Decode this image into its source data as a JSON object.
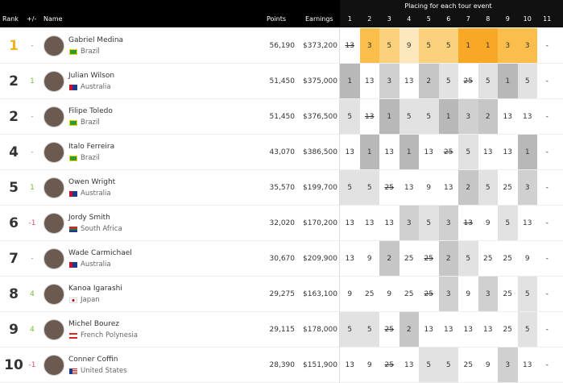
{
  "header": {
    "rank": "Rank",
    "change": "+/-",
    "name": "Name",
    "points": "Points",
    "earnings": "Earnings",
    "placing_title": "Placing for each tour event",
    "events": [
      1,
      2,
      3,
      4,
      5,
      6,
      7,
      8,
      9,
      10,
      11
    ]
  },
  "rows": [
    {
      "rank": 1,
      "change": "-",
      "name": "Gabriel Medina",
      "country": "Brazil",
      "points": "56,190",
      "earnings": "$373,200",
      "placings": [
        13,
        3,
        5,
        9,
        5,
        5,
        1,
        1,
        3,
        3,
        "-"
      ],
      "discarded_event": 1
    },
    {
      "rank": 2,
      "change": 1,
      "name": "Julian Wilson",
      "country": "Australia",
      "points": "51,450",
      "earnings": "$375,000",
      "placings": [
        1,
        13,
        3,
        13,
        2,
        5,
        25,
        5,
        1,
        5,
        "-"
      ],
      "discarded_event": 7
    },
    {
      "rank": 2,
      "change": "-",
      "name": "Filipe Toledo",
      "country": "Brazil",
      "points": "51,450",
      "earnings": "$376,500",
      "placings": [
        5,
        13,
        1,
        5,
        5,
        1,
        3,
        2,
        13,
        13,
        "-"
      ],
      "discarded_event": 2
    },
    {
      "rank": 4,
      "change": "-",
      "name": "Italo Ferreira",
      "country": "Brazil",
      "points": "43,070",
      "earnings": "$386,500",
      "placings": [
        13,
        1,
        13,
        1,
        13,
        25,
        5,
        13,
        13,
        1,
        "-"
      ],
      "discarded_event": 6
    },
    {
      "rank": 5,
      "change": 1,
      "name": "Owen Wright",
      "country": "Australia",
      "points": "35,570",
      "earnings": "$199,700",
      "placings": [
        5,
        5,
        25,
        13,
        9,
        13,
        2,
        5,
        25,
        3,
        "-"
      ],
      "discarded_event": 3
    },
    {
      "rank": 6,
      "change": -1,
      "name": "Jordy Smith",
      "country": "South Africa",
      "points": "32,020",
      "earnings": "$170,200",
      "placings": [
        13,
        13,
        13,
        3,
        5,
        3,
        13,
        9,
        5,
        13,
        "-"
      ],
      "discarded_event": 7
    },
    {
      "rank": 7,
      "change": "-",
      "name": "Wade Carmichael",
      "country": "Australia",
      "points": "30,670",
      "earnings": "$209,900",
      "placings": [
        13,
        9,
        2,
        25,
        25,
        2,
        5,
        25,
        25,
        9,
        "-"
      ],
      "discarded_event": 5
    },
    {
      "rank": 8,
      "change": 4,
      "name": "Kanoa Igarashi",
      "country": "Japan",
      "points": "29,275",
      "earnings": "$163,100",
      "placings": [
        9,
        25,
        9,
        25,
        25,
        3,
        9,
        3,
        25,
        5,
        "-"
      ],
      "discarded_event": 5
    },
    {
      "rank": 9,
      "change": 4,
      "name": "Michel Bourez",
      "country": "French Polynesia",
      "points": "29,115",
      "earnings": "$178,000",
      "placings": [
        5,
        5,
        25,
        2,
        13,
        13,
        13,
        13,
        25,
        5,
        "-"
      ],
      "discarded_event": 3
    },
    {
      "rank": 10,
      "change": -1,
      "name": "Conner Coffin",
      "country": "United States",
      "points": "28,390",
      "earnings": "$151,900",
      "placings": [
        13,
        9,
        25,
        13,
        5,
        5,
        25,
        9,
        3,
        13,
        "-"
      ],
      "discarded_event": 3
    }
  ]
}
